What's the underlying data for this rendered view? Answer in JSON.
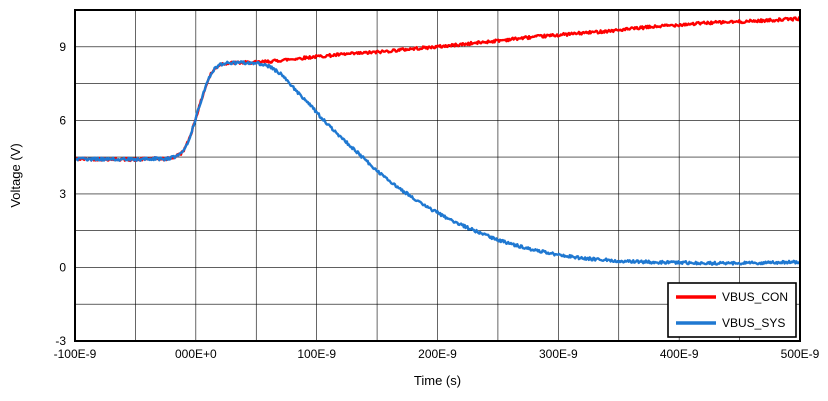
{
  "chart_data": {
    "type": "line",
    "title": "",
    "xlabel": "Time (s)",
    "ylabel": "Voltage (V)",
    "xlim_ns": [
      -100,
      500
    ],
    "ylim": [
      -3,
      10.5
    ],
    "x_grid_step_ns": 50,
    "y_grid_step": 1.5,
    "grid": true,
    "x_ticks": [
      {
        "t": -100,
        "label": "-100E-9"
      },
      {
        "t": 0,
        "label": "000E+0"
      },
      {
        "t": 100,
        "label": "100E-9"
      },
      {
        "t": 200,
        "label": "200E-9"
      },
      {
        "t": 300,
        "label": "300E-9"
      },
      {
        "t": 400,
        "label": "400E-9"
      },
      {
        "t": 500,
        "label": "500E-9"
      }
    ],
    "y_ticks": [
      {
        "v": -3,
        "label": "-3"
      },
      {
        "v": 0,
        "label": "0"
      },
      {
        "v": 3,
        "label": "3"
      },
      {
        "v": 6,
        "label": "6"
      },
      {
        "v": 9,
        "label": "9"
      }
    ],
    "legend": {
      "position": "bottom-right",
      "entries": [
        {
          "name": "VBUS_CON",
          "color": "#fe0000"
        },
        {
          "name": "VBUS_SYS",
          "color": "#1f78d1"
        }
      ]
    },
    "series": [
      {
        "name": "VBUS_CON",
        "color": "#fe0000",
        "stroke_width": 2.4,
        "noise_v": 0.06,
        "points_ns_v": [
          [
            -100,
            4.42
          ],
          [
            -70,
            4.42
          ],
          [
            -50,
            4.4
          ],
          [
            -35,
            4.44
          ],
          [
            -25,
            4.42
          ],
          [
            -18,
            4.5
          ],
          [
            -12,
            4.65
          ],
          [
            -8,
            4.95
          ],
          [
            -4,
            5.45
          ],
          [
            0,
            6.1
          ],
          [
            4,
            6.75
          ],
          [
            8,
            7.35
          ],
          [
            12,
            7.85
          ],
          [
            16,
            8.12
          ],
          [
            20,
            8.28
          ],
          [
            25,
            8.33
          ],
          [
            35,
            8.35
          ],
          [
            50,
            8.36
          ],
          [
            65,
            8.42
          ],
          [
            80,
            8.5
          ],
          [
            100,
            8.6
          ],
          [
            125,
            8.7
          ],
          [
            150,
            8.78
          ],
          [
            175,
            8.9
          ],
          [
            200,
            9.0
          ],
          [
            225,
            9.12
          ],
          [
            250,
            9.25
          ],
          [
            275,
            9.38
          ],
          [
            300,
            9.48
          ],
          [
            325,
            9.58
          ],
          [
            350,
            9.68
          ],
          [
            375,
            9.8
          ],
          [
            400,
            9.9
          ],
          [
            425,
            9.98
          ],
          [
            450,
            10.02
          ],
          [
            475,
            10.08
          ],
          [
            500,
            10.15
          ]
        ]
      },
      {
        "name": "VBUS_SYS",
        "color": "#1f78d1",
        "stroke_width": 2.4,
        "noise_v": 0.06,
        "points_ns_v": [
          [
            -100,
            4.42
          ],
          [
            -70,
            4.42
          ],
          [
            -50,
            4.4
          ],
          [
            -35,
            4.44
          ],
          [
            -25,
            4.42
          ],
          [
            -18,
            4.5
          ],
          [
            -12,
            4.65
          ],
          [
            -8,
            4.95
          ],
          [
            -4,
            5.45
          ],
          [
            0,
            6.1
          ],
          [
            4,
            6.75
          ],
          [
            8,
            7.35
          ],
          [
            12,
            7.85
          ],
          [
            16,
            8.12
          ],
          [
            20,
            8.28
          ],
          [
            25,
            8.33
          ],
          [
            35,
            8.35
          ],
          [
            45,
            8.35
          ],
          [
            55,
            8.3
          ],
          [
            62,
            8.18
          ],
          [
            70,
            7.9
          ],
          [
            78,
            7.5
          ],
          [
            86,
            7.05
          ],
          [
            95,
            6.6
          ],
          [
            105,
            6.05
          ],
          [
            115,
            5.55
          ],
          [
            128,
            4.95
          ],
          [
            140,
            4.4
          ],
          [
            152,
            3.85
          ],
          [
            165,
            3.35
          ],
          [
            178,
            2.9
          ],
          [
            190,
            2.5
          ],
          [
            205,
            2.1
          ],
          [
            220,
            1.72
          ],
          [
            235,
            1.42
          ],
          [
            250,
            1.12
          ],
          [
            265,
            0.9
          ],
          [
            280,
            0.72
          ],
          [
            295,
            0.56
          ],
          [
            310,
            0.44
          ],
          [
            330,
            0.33
          ],
          [
            350,
            0.27
          ],
          [
            375,
            0.22
          ],
          [
            400,
            0.2
          ],
          [
            430,
            0.17
          ],
          [
            460,
            0.18
          ],
          [
            480,
            0.2
          ],
          [
            500,
            0.22
          ]
        ]
      }
    ]
  }
}
